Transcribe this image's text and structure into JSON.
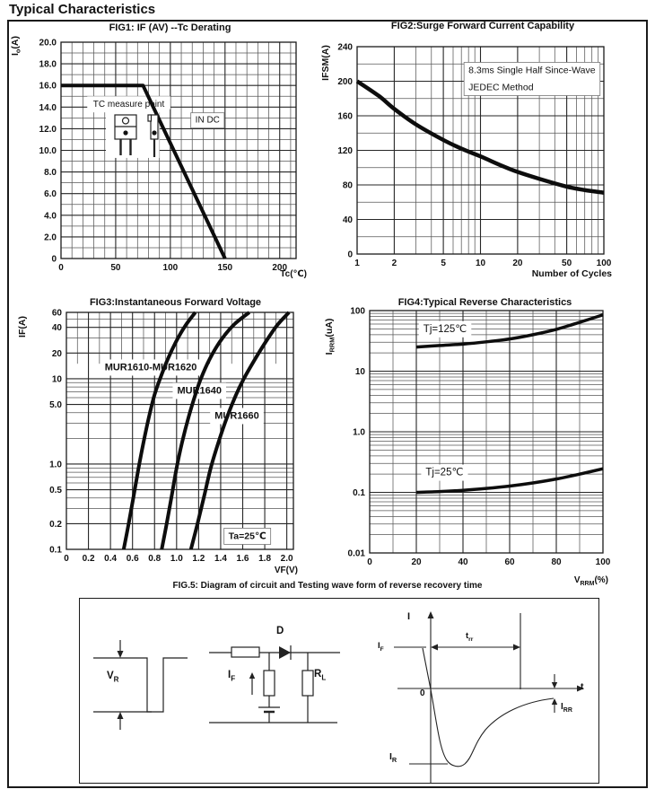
{
  "heading": "Typical Characteristics",
  "chart_data": [
    {
      "id": "fig1",
      "type": "line",
      "title": "FIG1: IF (AV) --Tc  Derating",
      "xlabel": "Tc(℃)",
      "ylabel": "I~o~(A)",
      "xscale": "linear",
      "yscale": "linear",
      "xlim": [
        0,
        215
      ],
      "ylim": [
        0,
        20
      ],
      "x_ticks": [
        {
          "v": 0,
          "label": "0"
        },
        {
          "v": 50,
          "label": "50"
        },
        {
          "v": 100,
          "label": "100"
        },
        {
          "v": 150,
          "label": "150"
        },
        {
          "v": 200,
          "label": "200"
        }
      ],
      "y_ticks": [
        {
          "v": 20,
          "label": "20.0"
        },
        {
          "v": 18,
          "label": "18.0"
        },
        {
          "v": 16,
          "label": "16.0"
        },
        {
          "v": 14,
          "label": "14.0"
        },
        {
          "v": 12,
          "label": "12.0"
        },
        {
          "v": 10,
          "label": "10.0"
        },
        {
          "v": 8,
          "label": "8.0"
        },
        {
          "v": 6,
          "label": "6.0"
        },
        {
          "v": 4,
          "label": "4.0"
        },
        {
          "v": 2,
          "label": "2.0"
        },
        {
          "v": 0,
          "label": "0"
        }
      ],
      "x_grid": {
        "type": "step",
        "step": 10
      },
      "y_grid": {
        "type": "step",
        "step": 1
      },
      "series": [
        {
          "name": "derating-curve",
          "width": 4,
          "smooth": false,
          "points": [
            [
              0,
              16
            ],
            [
              75,
              16
            ],
            [
              150,
              0
            ]
          ]
        }
      ],
      "clear_rects": [
        [
          24,
          13.8,
          100,
          15.0
        ],
        [
          41,
          9.3,
          90,
          13.8
        ]
      ],
      "annotations": [
        {
          "name": "tc-measure-point-label",
          "text": "TC measure point",
          "x": 62,
          "y": 14.3,
          "fs": 10,
          "anchor": "middle"
        },
        {
          "name": "in-dc-label",
          "text": "IN DC",
          "x": 134,
          "y": 12.85,
          "fs": 10,
          "anchor": "middle",
          "border": true
        }
      ],
      "icons": [
        "to220-front",
        "to220-side"
      ]
    },
    {
      "id": "fig2",
      "type": "line",
      "title": "FIG2:Surge Forward Current Capability",
      "xlabel": "Number of Cycles",
      "ylabel": "IFSM(A)",
      "xscale": "log",
      "yscale": "linear",
      "xlim": [
        1,
        100
      ],
      "ylim": [
        0,
        240
      ],
      "x_ticks": [
        {
          "v": 1,
          "label": "1"
        },
        {
          "v": 2,
          "label": "2"
        },
        {
          "v": 5,
          "label": "5"
        },
        {
          "v": 10,
          "label": "10"
        },
        {
          "v": 20,
          "label": "20"
        },
        {
          "v": 50,
          "label": "50"
        },
        {
          "v": 100,
          "label": "100"
        }
      ],
      "y_ticks": [
        {
          "v": 0,
          "label": "0"
        },
        {
          "v": 40,
          "label": "40"
        },
        {
          "v": 80,
          "label": "80"
        },
        {
          "v": 120,
          "label": "120"
        },
        {
          "v": 160,
          "label": "160"
        },
        {
          "v": 200,
          "label": "200"
        },
        {
          "v": 240,
          "label": "240"
        }
      ],
      "x_grid": {
        "type": "log"
      },
      "y_grid": {
        "type": "step",
        "step": 20
      },
      "series": [
        {
          "name": "surge-current-curve",
          "width": 4.5,
          "smooth": true,
          "points": [
            [
              1,
              200
            ],
            [
              1.5,
              183
            ],
            [
              2,
              168
            ],
            [
              3,
              150
            ],
            [
              5,
              132
            ],
            [
              7,
              122
            ],
            [
              10,
              113
            ],
            [
              15,
              102
            ],
            [
              20,
              95
            ],
            [
              30,
              87
            ],
            [
              50,
              78
            ],
            [
              70,
              74
            ],
            [
              100,
              71
            ]
          ]
        }
      ],
      "annotations": [
        {
          "name": "surge-test-condition-label",
          "lines": [
            "8.3ms Single Half Since-Wave",
            "JEDEC Method"
          ],
          "x": 8,
          "y": 213,
          "fs": 10.5,
          "anchor": "start",
          "border": true,
          "lh": 19
        }
      ]
    },
    {
      "id": "fig3",
      "type": "line",
      "title": "FIG3:Instantaneous Forward Voltage",
      "xlabel": "VF(V)",
      "ylabel": "IF(A)",
      "xscale": "linear",
      "yscale": "log",
      "xlim": [
        0,
        2.06
      ],
      "ylim": [
        0.1,
        60
      ],
      "x_ticks": [
        {
          "v": 0,
          "label": "0"
        },
        {
          "v": 0.2,
          "label": "0.2"
        },
        {
          "v": 0.4,
          "label": "0.4"
        },
        {
          "v": 0.6,
          "label": "0.6"
        },
        {
          "v": 0.8,
          "label": "0.8"
        },
        {
          "v": 1.0,
          "label": "1.0"
        },
        {
          "v": 1.2,
          "label": "1.2"
        },
        {
          "v": 1.4,
          "label": "1.4"
        },
        {
          "v": 1.6,
          "label": "1.6"
        },
        {
          "v": 1.8,
          "label": "1.8"
        },
        {
          "v": 2.0,
          "label": "2.0"
        }
      ],
      "y_ticks": [
        {
          "v": 60,
          "label": "60"
        },
        {
          "v": 40,
          "label": "40"
        },
        {
          "v": 20,
          "label": "20"
        },
        {
          "v": 10,
          "label": "10"
        },
        {
          "v": 5,
          "label": "5.0"
        },
        {
          "v": 1,
          "label": "1.0"
        },
        {
          "v": 0.5,
          "label": "0.5"
        },
        {
          "v": 0.2,
          "label": "0.2"
        },
        {
          "v": 0.1,
          "label": "0.1"
        }
      ],
      "x_grid": {
        "type": "step",
        "step": 0.2,
        "band_step": 0.1,
        "band": [
          15,
          60
        ]
      },
      "y_grid": {
        "type": "log"
      },
      "series": [
        {
          "name": "MUR1610-MUR1620",
          "width": 4,
          "smooth": true,
          "points": [
            [
              0.52,
              0.1
            ],
            [
              0.565,
              0.2
            ],
            [
              0.61,
              0.42
            ],
            [
              0.655,
              0.9
            ],
            [
              0.7,
              1.8
            ],
            [
              0.75,
              3.6
            ],
            [
              0.8,
              6.5
            ],
            [
              0.85,
              10
            ],
            [
              0.92,
              17
            ],
            [
              1.0,
              28
            ],
            [
              1.08,
              42
            ],
            [
              1.17,
              60
            ]
          ]
        },
        {
          "name": "MUR1640",
          "width": 4,
          "smooth": true,
          "points": [
            [
              0.865,
              0.1
            ],
            [
              0.91,
              0.2
            ],
            [
              0.955,
              0.42
            ],
            [
              1.0,
              0.9
            ],
            [
              1.05,
              1.8
            ],
            [
              1.11,
              3.6
            ],
            [
              1.17,
              6.5
            ],
            [
              1.22,
              10
            ],
            [
              1.3,
              17
            ],
            [
              1.4,
              28
            ],
            [
              1.52,
              43
            ],
            [
              1.66,
              60
            ]
          ]
        },
        {
          "name": "MUR1660",
          "width": 4,
          "smooth": true,
          "points": [
            [
              1.13,
              0.1
            ],
            [
              1.19,
              0.2
            ],
            [
              1.25,
              0.42
            ],
            [
              1.31,
              0.9
            ],
            [
              1.38,
              1.8
            ],
            [
              1.46,
              3.6
            ],
            [
              1.54,
              6.5
            ],
            [
              1.61,
              10
            ],
            [
              1.7,
              16
            ],
            [
              1.8,
              26
            ],
            [
              1.91,
              42
            ],
            [
              2.02,
              60
            ]
          ]
        }
      ],
      "annotations": [
        {
          "name": "curve-label-mur1610-1620",
          "text": "MUR1610-MUR1620",
          "x": 0.766,
          "y": 13.7,
          "fs": 11,
          "bold": true,
          "anchor": "middle"
        },
        {
          "name": "curve-label-mur1640",
          "text": "MUR1640",
          "x": 1.207,
          "y": 7.3,
          "fs": 11,
          "bold": true,
          "anchor": "middle"
        },
        {
          "name": "curve-label-mur1660",
          "text": "MUR1660",
          "x": 1.547,
          "y": 3.7,
          "fs": 11,
          "bold": true,
          "anchor": "middle"
        },
        {
          "name": "ta-condition-label",
          "text": "Ta=25℃",
          "x": 1.642,
          "y": 0.144,
          "fs": 10.5,
          "bold": true,
          "anchor": "middle",
          "border": true
        }
      ]
    },
    {
      "id": "fig4",
      "type": "line",
      "title": "FIG4:Typical Reverse Characteristics",
      "xlabel": "V~RRM~(%)",
      "ylabel": "I~RRM~(uA)",
      "xscale": "linear",
      "yscale": "log",
      "xlim": [
        0,
        100
      ],
      "ylim": [
        0.01,
        100
      ],
      "x_ticks": [
        {
          "v": 0,
          "label": "0"
        },
        {
          "v": 20,
          "label": "20"
        },
        {
          "v": 40,
          "label": "40"
        },
        {
          "v": 60,
          "label": "60"
        },
        {
          "v": 80,
          "label": "80"
        },
        {
          "v": 100,
          "label": "100"
        }
      ],
      "y_ticks": [
        {
          "v": 100,
          "label": "100"
        },
        {
          "v": 10,
          "label": "10"
        },
        {
          "v": 1,
          "label": "1.0"
        },
        {
          "v": 0.1,
          "label": "0.1"
        },
        {
          "v": 0.01,
          "label": "0.01"
        }
      ],
      "x_grid": {
        "type": "step",
        "step": 10
      },
      "y_grid": {
        "type": "log"
      },
      "series": [
        {
          "name": "Tj-125C-curve",
          "width": 3.5,
          "smooth": true,
          "points": [
            [
              20,
              25
            ],
            [
              30,
              26.5
            ],
            [
              40,
              28
            ],
            [
              50,
              30.5
            ],
            [
              60,
              34
            ],
            [
              70,
              40
            ],
            [
              80,
              49
            ],
            [
              90,
              64
            ],
            [
              100,
              85
            ]
          ]
        },
        {
          "name": "Tj-25C-curve",
          "width": 3.5,
          "smooth": true,
          "points": [
            [
              20,
              0.1
            ],
            [
              30,
              0.103
            ],
            [
              40,
              0.108
            ],
            [
              50,
              0.116
            ],
            [
              60,
              0.127
            ],
            [
              70,
              0.143
            ],
            [
              80,
              0.166
            ],
            [
              90,
              0.2
            ],
            [
              100,
              0.245
            ]
          ]
        }
      ],
      "annotations": [
        {
          "name": "tj125-label",
          "text": "Tj=125℃",
          "x": 23,
          "y": 50,
          "fs": 11.5,
          "anchor": "start"
        },
        {
          "name": "tj25-label",
          "text": "Tj=25℃",
          "x": 24,
          "y": 0.215,
          "fs": 11.5,
          "anchor": "start"
        }
      ]
    }
  ],
  "fig5": {
    "caption": "FIG.5: Diagram of circuit and Testing wave form of reverse recovery time",
    "labels": {
      "vr": "V~R~",
      "d": "D",
      "if_src": "I~F~",
      "rl": "R~L~",
      "i_axis": "I",
      "t_axis": "t",
      "zero": "0",
      "trr": "t~rr~",
      "if_level": "I~F~",
      "ir": "I~R~",
      "irr": "I~RR~"
    }
  }
}
